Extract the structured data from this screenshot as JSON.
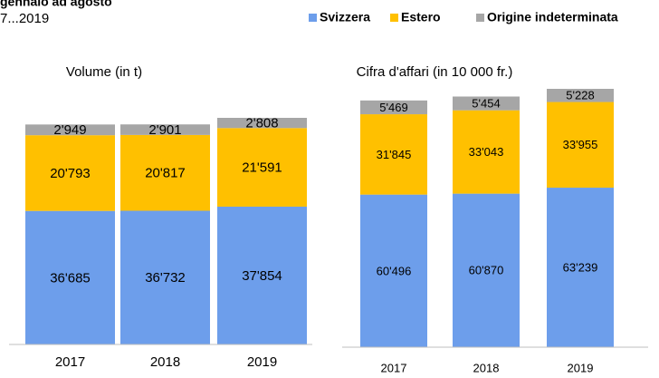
{
  "header": {
    "title": "gennaio ad agosto",
    "subtitle": "7...2019"
  },
  "chart_data": [
    {
      "type": "bar",
      "stacked": true,
      "title": "Volume (in t)",
      "categories": [
        "2017",
        "2018",
        "2019"
      ],
      "series": [
        {
          "name": "Svizzera",
          "color": "#6d9eeb",
          "values": [
            36685,
            36732,
            37854
          ],
          "value_labels": [
            "36'685",
            "36'732",
            "37'854"
          ]
        },
        {
          "name": "Estero",
          "color": "#ffc000",
          "values": [
            20793,
            20817,
            21591
          ],
          "value_labels": [
            "20'793",
            "20'817",
            "21'591"
          ]
        },
        {
          "name": "Origine indeterminata",
          "color": "#a6a6a6",
          "values": [
            2949,
            2901,
            2808
          ],
          "value_labels": [
            "2'949",
            "2'901",
            "2'808"
          ]
        }
      ]
    },
    {
      "type": "bar",
      "stacked": true,
      "title": "Cifra d'affari (in 10 000 fr.)",
      "categories": [
        "2017",
        "2018",
        "2019"
      ],
      "series": [
        {
          "name": "Svizzera",
          "color": "#6d9eeb",
          "values": [
            60496,
            60870,
            63239
          ],
          "value_labels": [
            "60'496",
            "60'870",
            "63'239"
          ]
        },
        {
          "name": "Estero",
          "color": "#ffc000",
          "values": [
            31845,
            33043,
            33955
          ],
          "value_labels": [
            "31'845",
            "33'043",
            "33'955"
          ]
        },
        {
          "name": "Origine indeterminata",
          "color": "#a6a6a6",
          "values": [
            5469,
            5454,
            5228
          ],
          "value_labels": [
            "5'469",
            "5'454",
            "5'228"
          ]
        }
      ]
    }
  ]
}
